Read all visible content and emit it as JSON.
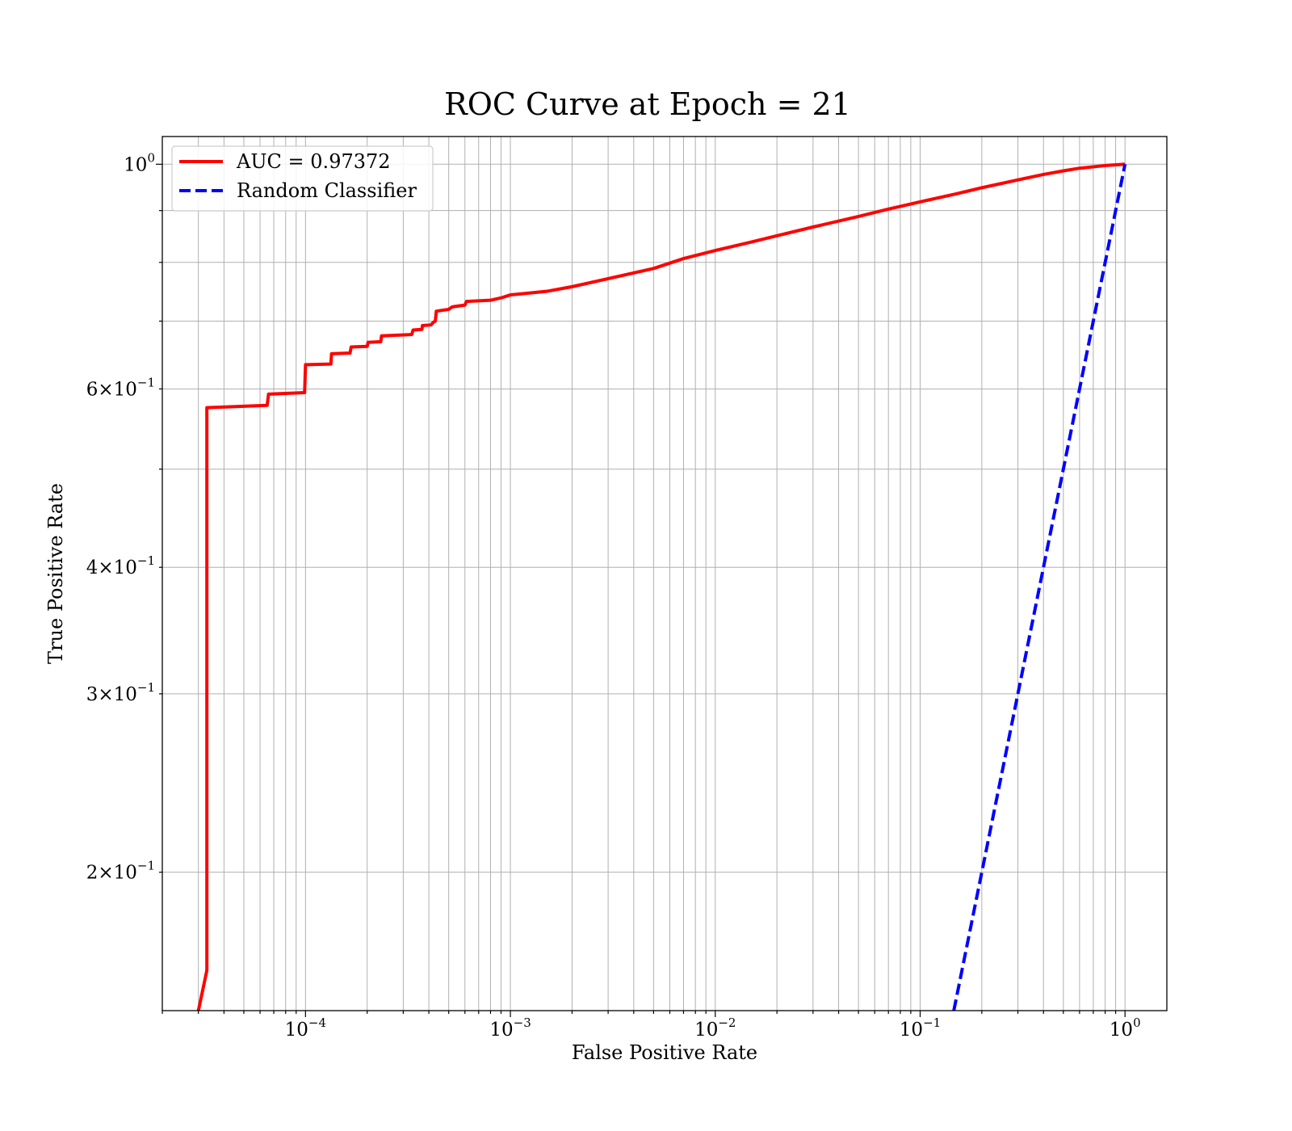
{
  "chart_data": {
    "type": "line",
    "title": "ROC Curve at Epoch = 21",
    "xlabel": "False Positive Rate",
    "ylabel": "True Positive Rate",
    "xscale": "log",
    "yscale": "log",
    "xlim": [
      2e-05,
      1.6
    ],
    "ylim": [
      0.146,
      1.065
    ],
    "grid": "both major and minor",
    "legend_position": "top-left",
    "x_ticks": [
      {
        "base": "10",
        "exp": "−4",
        "value": 0.0001
      },
      {
        "base": "10",
        "exp": "−3",
        "value": 0.001
      },
      {
        "base": "10",
        "exp": "−2",
        "value": 0.01
      },
      {
        "base": "10",
        "exp": "−1",
        "value": 0.1
      },
      {
        "base": "10",
        "exp": "0",
        "value": 1
      }
    ],
    "y_ticks": [
      {
        "mant": "2",
        "base": "10",
        "exp": "−1",
        "value": 0.2
      },
      {
        "mant": "3",
        "base": "10",
        "exp": "−1",
        "value": 0.3
      },
      {
        "mant": "4",
        "base": "10",
        "exp": "−1",
        "value": 0.4
      },
      {
        "mant": "6",
        "base": "10",
        "exp": "−1",
        "value": 0.6
      },
      {
        "mant": "",
        "base": "10",
        "exp": "0",
        "value": 1
      }
    ],
    "series": [
      {
        "name": "AUC = 0.97372",
        "color": "#ff0000",
        "style": "solid",
        "points": [
          [
            3e-05,
            0.146
          ],
          [
            3.3e-05,
            0.16
          ],
          [
            3.3e-05,
            0.575
          ],
          [
            6.5e-05,
            0.578
          ],
          [
            6.6e-05,
            0.593
          ],
          [
            9.9e-05,
            0.595
          ],
          [
            0.0001,
            0.634
          ],
          [
            0.000133,
            0.635
          ],
          [
            0.000134,
            0.65
          ],
          [
            0.000165,
            0.651
          ],
          [
            0.000167,
            0.66
          ],
          [
            0.0002,
            0.661
          ],
          [
            0.000202,
            0.667
          ],
          [
            0.000233,
            0.668
          ],
          [
            0.000235,
            0.677
          ],
          [
            0.00033,
            0.679
          ],
          [
            0.000335,
            0.686
          ],
          [
            0.00037,
            0.687
          ],
          [
            0.000372,
            0.693
          ],
          [
            0.00041,
            0.694
          ],
          [
            0.00042,
            0.698
          ],
          [
            0.00043,
            0.7
          ],
          [
            0.000435,
            0.716
          ],
          [
            0.0005,
            0.719
          ],
          [
            0.00052,
            0.723
          ],
          [
            0.0006,
            0.726
          ],
          [
            0.00061,
            0.732
          ],
          [
            0.0008,
            0.734
          ],
          [
            0.0009,
            0.738
          ],
          [
            0.001,
            0.743
          ],
          [
            0.0015,
            0.749
          ],
          [
            0.002,
            0.757
          ],
          [
            0.003,
            0.771
          ],
          [
            0.005,
            0.789
          ],
          [
            0.007,
            0.807
          ],
          [
            0.01,
            0.822
          ],
          [
            0.015,
            0.838
          ],
          [
            0.02,
            0.85
          ],
          [
            0.03,
            0.867
          ],
          [
            0.05,
            0.888
          ],
          [
            0.07,
            0.903
          ],
          [
            0.1,
            0.918
          ],
          [
            0.15,
            0.935
          ],
          [
            0.2,
            0.948
          ],
          [
            0.3,
            0.965
          ],
          [
            0.4,
            0.977
          ],
          [
            0.5,
            0.985
          ],
          [
            0.6,
            0.991
          ],
          [
            0.8,
            0.997
          ],
          [
            1.0,
            1.0
          ]
        ]
      },
      {
        "name": "Random Classifier",
        "color": "#0000ff",
        "style": "dashed",
        "points": [
          [
            0.146,
            0.146
          ],
          [
            1.0,
            1.0
          ]
        ]
      }
    ]
  }
}
